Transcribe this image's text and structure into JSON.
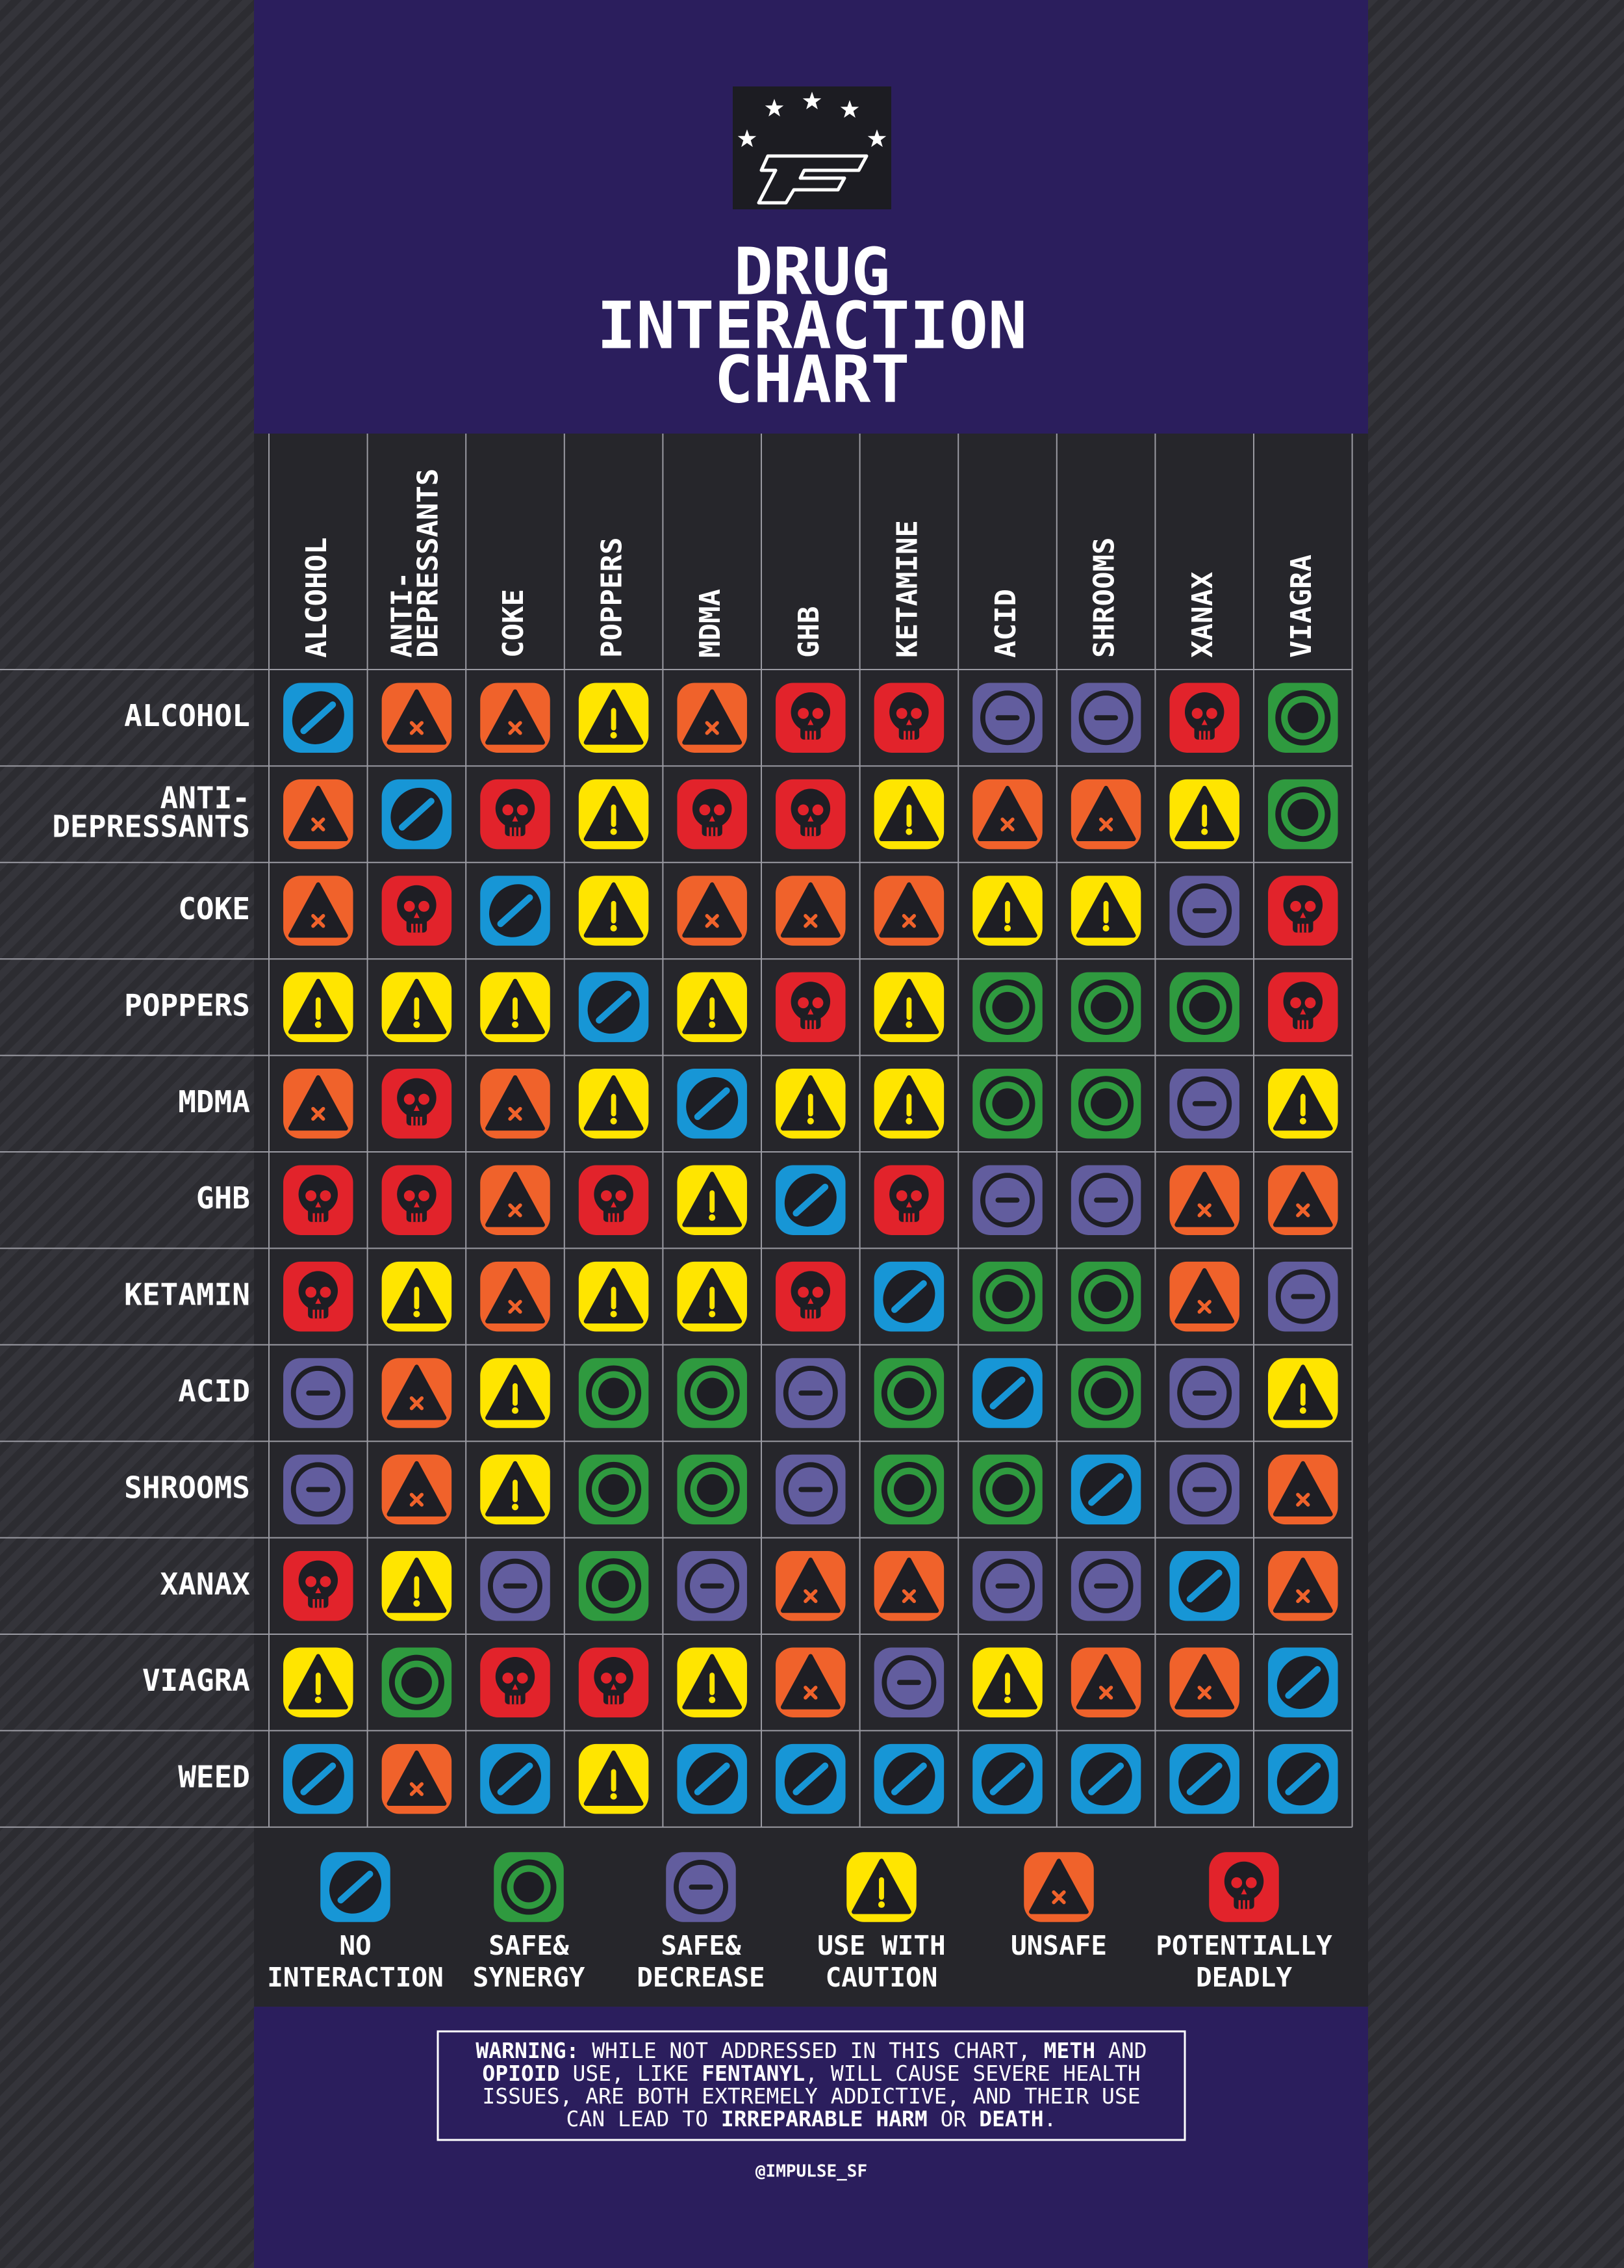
{
  "header": {
    "title": [
      "DRUG",
      "INTERACTION",
      "CHART"
    ]
  },
  "table": {
    "columns": [
      [
        "ALCOHOL"
      ],
      [
        "ANTI-",
        "DEPRESSANTS"
      ],
      [
        "COKE"
      ],
      [
        "POPPERS"
      ],
      [
        "MDMA"
      ],
      [
        "GHB"
      ],
      [
        "KETAMINE"
      ],
      [
        "ACID"
      ],
      [
        "SHROOMS"
      ],
      [
        "XANAX"
      ],
      [
        "VIAGRA"
      ]
    ],
    "rows": [
      {
        "label": [
          "ALCOHOL"
        ],
        "cells": [
          0,
          4,
          4,
          3,
          4,
          5,
          5,
          2,
          2,
          5,
          1
        ]
      },
      {
        "label": [
          "ANTI-",
          "DEPRESSANTS"
        ],
        "cells": [
          4,
          0,
          5,
          3,
          5,
          5,
          3,
          4,
          4,
          3,
          1
        ]
      },
      {
        "label": [
          "COKE"
        ],
        "cells": [
          4,
          5,
          0,
          3,
          4,
          4,
          4,
          3,
          3,
          2,
          5
        ]
      },
      {
        "label": [
          "POPPERS"
        ],
        "cells": [
          3,
          3,
          3,
          0,
          3,
          5,
          3,
          1,
          1,
          1,
          5
        ]
      },
      {
        "label": [
          "MDMA"
        ],
        "cells": [
          4,
          5,
          4,
          3,
          0,
          3,
          3,
          1,
          1,
          2,
          3
        ]
      },
      {
        "label": [
          "GHB"
        ],
        "cells": [
          5,
          5,
          4,
          5,
          3,
          0,
          5,
          2,
          2,
          4,
          4
        ]
      },
      {
        "label": [
          "KETAMIN"
        ],
        "cells": [
          5,
          3,
          4,
          3,
          3,
          5,
          0,
          1,
          1,
          4,
          2
        ]
      },
      {
        "label": [
          "ACID"
        ],
        "cells": [
          2,
          4,
          3,
          1,
          1,
          2,
          1,
          0,
          1,
          2,
          3
        ]
      },
      {
        "label": [
          "SHROOMS"
        ],
        "cells": [
          2,
          4,
          3,
          1,
          1,
          2,
          1,
          1,
          0,
          2,
          4
        ]
      },
      {
        "label": [
          "XANAX"
        ],
        "cells": [
          5,
          3,
          2,
          1,
          2,
          4,
          4,
          2,
          2,
          0,
          4
        ]
      },
      {
        "label": [
          "VIAGRA"
        ],
        "cells": [
          3,
          1,
          5,
          5,
          3,
          4,
          2,
          3,
          4,
          4,
          0
        ]
      },
      {
        "label": [
          "WEED"
        ],
        "cells": [
          0,
          4,
          0,
          3,
          0,
          0,
          0,
          0,
          0,
          0,
          0
        ]
      }
    ]
  },
  "legend": [
    {
      "label": [
        "NO",
        "INTERACTION"
      ],
      "color": "#1796d6"
    },
    {
      "label": [
        "SAFE&",
        "SYNERGY"
      ],
      "color": "#2f9a3f"
    },
    {
      "label": [
        "SAFE&",
        "DECREASE"
      ],
      "color": "#625d9e"
    },
    {
      "label": [
        "USE WITH",
        "CAUTION"
      ],
      "color": "#ffe500"
    },
    {
      "label": [
        "UNSAFE"
      ],
      "color": "#f0622b"
    },
    {
      "label": [
        "POTENTIALLY",
        "DEADLY"
      ],
      "color": "#e2232b"
    }
  ],
  "warning": [
    [
      {
        "text": "WARNING:",
        "bold": true
      },
      {
        "text": " WHILE NOT ADDRESSED IN THIS CHART, "
      },
      {
        "text": "METH",
        "bold": true
      },
      {
        "text": " AND"
      }
    ],
    [
      {
        "text": "OPIOID",
        "bold": true
      },
      {
        "text": " USE, LIKE "
      },
      {
        "text": "FENTANYL",
        "bold": true
      },
      {
        "text": ", WILL CAUSE SEVERE HEALTH"
      }
    ],
    [
      {
        "text": "ISSUES, ARE BOTH EXTREMELY ADDICTIVE, AND THEIR USE"
      }
    ],
    [
      {
        "text": "CAN LEAD TO "
      },
      {
        "text": "IRREPARABLE HARM",
        "bold": true
      },
      {
        "text": " OR "
      },
      {
        "text": "DEATH",
        "bold": true
      },
      {
        "text": "."
      }
    ]
  ],
  "handle": "@IMPULSE_SF"
}
